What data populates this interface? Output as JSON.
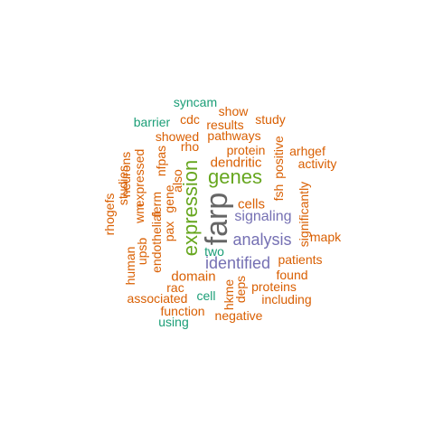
{
  "colors": {
    "orange": "#d95f02",
    "green": "#1b9e77",
    "purple": "#7570b3",
    "lime": "#66a61e",
    "gray": "#666666"
  },
  "words": [
    {
      "text": "farp",
      "color": "gray",
      "vertical": true
    },
    {
      "text": "genes",
      "color": "lime",
      "vertical": false
    },
    {
      "text": "expression",
      "color": "lime",
      "vertical": true
    },
    {
      "text": "identified",
      "color": "purple",
      "vertical": false
    },
    {
      "text": "analysis",
      "color": "purple",
      "vertical": false
    },
    {
      "text": "signaling",
      "color": "purple",
      "vertical": false
    },
    {
      "text": "dendritic",
      "color": "orange",
      "vertical": false
    },
    {
      "text": "cells",
      "color": "orange",
      "vertical": false
    },
    {
      "text": "domain",
      "color": "orange",
      "vertical": false
    },
    {
      "text": "protein",
      "color": "orange",
      "vertical": false
    },
    {
      "text": "pathways",
      "color": "orange",
      "vertical": false
    },
    {
      "text": "showed",
      "color": "orange",
      "vertical": false
    },
    {
      "text": "results",
      "color": "orange",
      "vertical": false
    },
    {
      "text": "study",
      "color": "orange",
      "vertical": false
    },
    {
      "text": "show",
      "color": "orange",
      "vertical": false
    },
    {
      "text": "cdc",
      "color": "orange",
      "vertical": false
    },
    {
      "text": "rho",
      "color": "orange",
      "vertical": false
    },
    {
      "text": "arhgef",
      "color": "orange",
      "vertical": false
    },
    {
      "text": "activity",
      "color": "orange",
      "vertical": false
    },
    {
      "text": "positive",
      "color": "orange",
      "vertical": true
    },
    {
      "text": "fsh",
      "color": "orange",
      "vertical": true
    },
    {
      "text": "significantly",
      "color": "orange",
      "vertical": true
    },
    {
      "text": "mapk",
      "color": "orange",
      "vertical": false
    },
    {
      "text": "patients",
      "color": "orange",
      "vertical": false
    },
    {
      "text": "found",
      "color": "orange",
      "vertical": false
    },
    {
      "text": "proteins",
      "color": "orange",
      "vertical": false
    },
    {
      "text": "including",
      "color": "orange",
      "vertical": false
    },
    {
      "text": "negative",
      "color": "orange",
      "vertical": false
    },
    {
      "text": "function",
      "color": "orange",
      "vertical": false
    },
    {
      "text": "associated",
      "color": "orange",
      "vertical": false
    },
    {
      "text": "rac",
      "color": "orange",
      "vertical": false
    },
    {
      "text": "hkme",
      "color": "orange",
      "vertical": true
    },
    {
      "text": "deps",
      "color": "orange",
      "vertical": true
    },
    {
      "text": "endothelial",
      "color": "orange",
      "vertical": true
    },
    {
      "text": "pax",
      "color": "orange",
      "vertical": true
    },
    {
      "text": "gene",
      "color": "orange",
      "vertical": true
    },
    {
      "text": "also",
      "color": "orange",
      "vertical": true
    },
    {
      "text": "nfpas",
      "color": "orange",
      "vertical": true
    },
    {
      "text": "ferm",
      "color": "orange",
      "vertical": true
    },
    {
      "text": "expressed",
      "color": "orange",
      "vertical": true
    },
    {
      "text": "wm",
      "color": "orange",
      "vertical": true
    },
    {
      "text": "neurons",
      "color": "orange",
      "vertical": true
    },
    {
      "text": "studies",
      "color": "orange",
      "vertical": true
    },
    {
      "text": "rhogefs",
      "color": "orange",
      "vertical": true
    },
    {
      "text": "human",
      "color": "orange",
      "vertical": true
    },
    {
      "text": "upsb",
      "color": "orange",
      "vertical": true
    },
    {
      "text": "syncam",
      "color": "green",
      "vertical": false
    },
    {
      "text": "barrier",
      "color": "green",
      "vertical": false
    },
    {
      "text": "two",
      "color": "green",
      "vertical": false
    },
    {
      "text": "cell",
      "color": "green",
      "vertical": false
    },
    {
      "text": "using",
      "color": "green",
      "vertical": false
    }
  ]
}
